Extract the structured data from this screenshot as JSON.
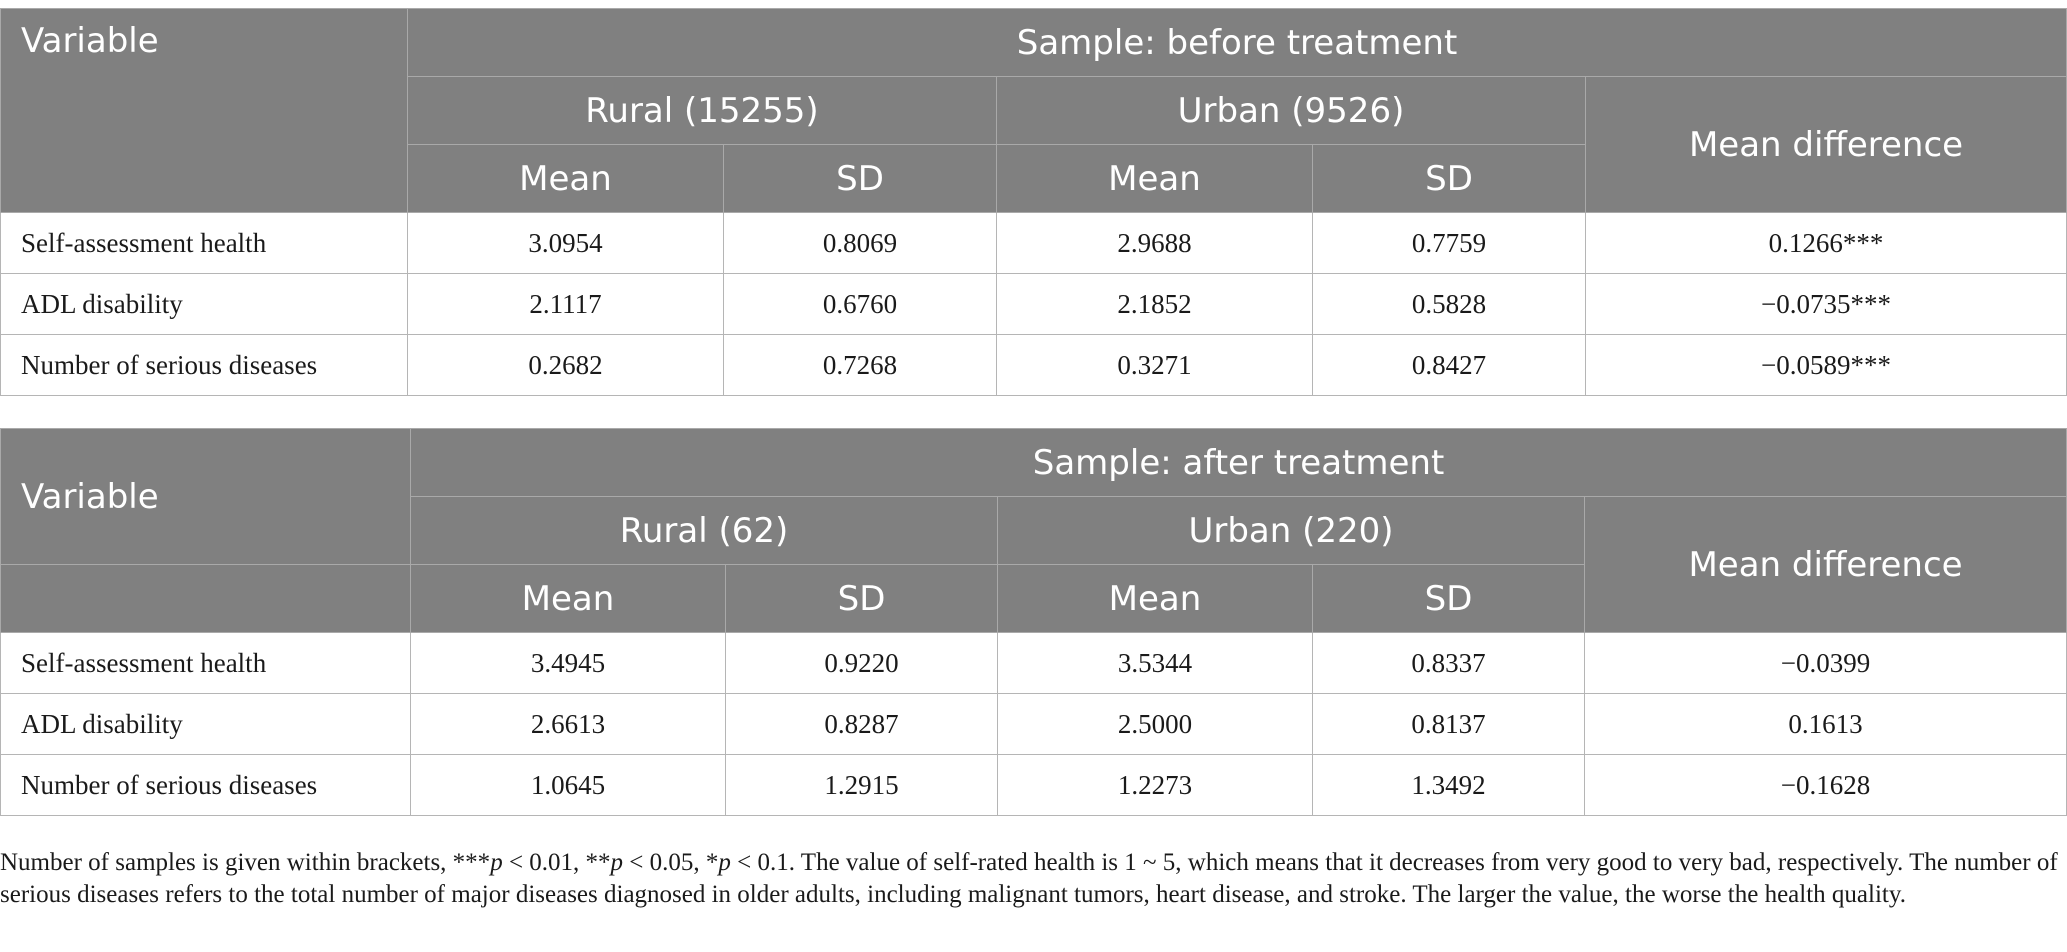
{
  "before": {
    "header": {
      "variable": "Variable",
      "sample": "Sample: before treatment",
      "rural": "Rural (15255)",
      "urban": "Urban (9526)",
      "mean_diff": "Mean difference",
      "mean": "Mean",
      "sd": "SD"
    },
    "rows": [
      [
        "Self-assessment health",
        "3.0954",
        "0.8069",
        "2.9688",
        "0.7759",
        "0.1266***"
      ],
      [
        "ADL disability",
        "2.1117",
        "0.6760",
        "2.1852",
        "0.5828",
        "−0.0735***"
      ],
      [
        "Number of serious diseases",
        "0.2682",
        "0.7268",
        "0.3271",
        "0.8427",
        "−0.0589***"
      ]
    ]
  },
  "after": {
    "header": {
      "variable": "Variable",
      "sample": "Sample: after treatment",
      "rural": "Rural (62)",
      "urban": "Urban (220)",
      "mean_diff": "Mean difference",
      "mean": "Mean",
      "sd": "SD"
    },
    "rows": [
      [
        "Self-assessment health",
        "3.4945",
        "0.9220",
        "3.5344",
        "0.8337",
        "−0.0399"
      ],
      [
        "ADL disability",
        "2.6613",
        "0.8287",
        "2.5000",
        "0.8137",
        "0.1613"
      ],
      [
        "Number of serious diseases",
        "1.0645",
        "1.2915",
        "1.2273",
        "1.3492",
        "−0.1628"
      ]
    ]
  },
  "footnote": {
    "s1": "Number of samples is given within brackets, ***",
    "p1": "p",
    "s2": " < 0.01, **",
    "p2": "p",
    "s3": " < 0.05, *",
    "p3": "p",
    "s4": " < 0.1. The value of self-rated health is 1 ~ 5, which means that it decreases from very good to very bad, respectively. The number of serious diseases refers to the total number of major diseases diagnosed in older adults, including malignant tumors, heart disease, and stroke. The larger the value, the worse the health quality."
  }
}
